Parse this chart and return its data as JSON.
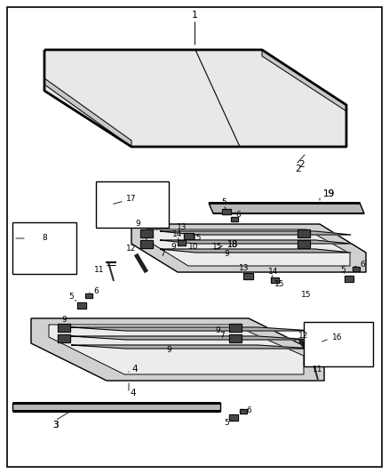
{
  "bg_color": "#ffffff",
  "border_lw": 1.2,
  "line_color": "#000000",
  "part_label_size": 7,
  "leader_lw": 0.6,
  "draw_lw": 0.9,
  "cover_face": "#e8e8e8",
  "frame_face": "#d0d0d0",
  "strip_face": "#b8b8b8",
  "dark_part": "#383838",
  "inset_face": "#ffffff"
}
